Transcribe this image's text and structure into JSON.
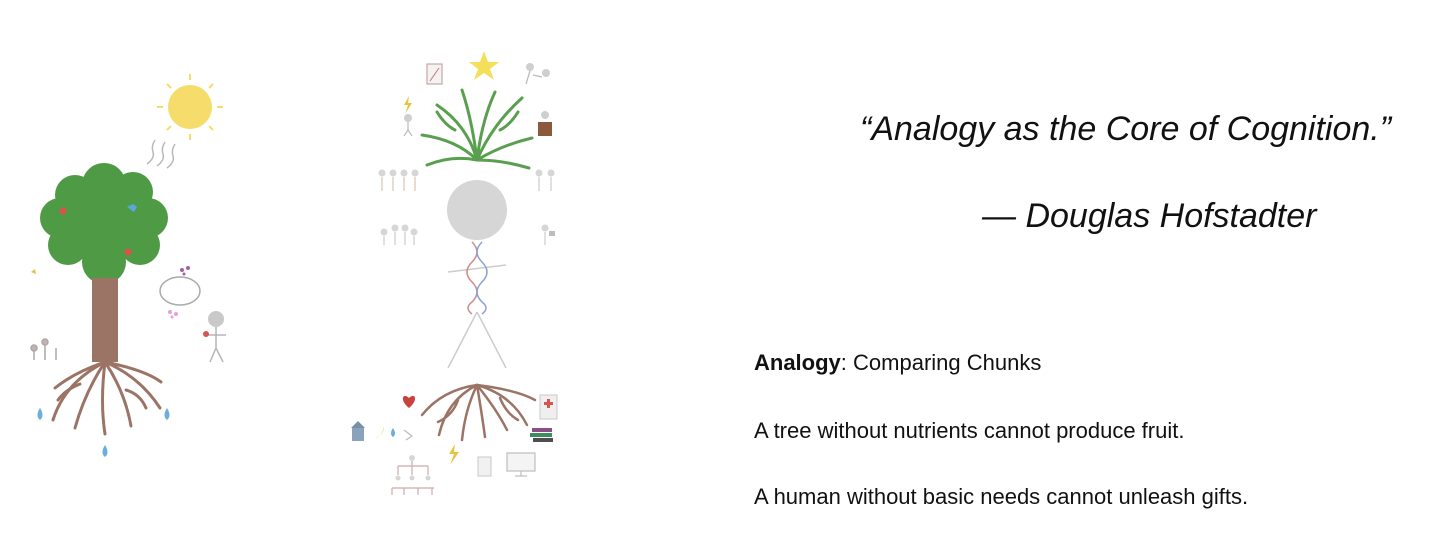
{
  "quote": {
    "text": "“Analogy as the Core of Cognition.”",
    "attribution": "— Douglas Hofstadter"
  },
  "definition": {
    "term": "Analogy",
    "rest": ": Comparing Chunks"
  },
  "statements": [
    "A tree without nutrients cannot produce fruit.",
    "A human without basic needs cannot unleash gifts."
  ],
  "illustrations": {
    "left": "tree-with-sun-rain-roots",
    "right": "human-figure-with-dna-roots-and-branches"
  },
  "colors": {
    "sun": "#f6dc6a",
    "foliage": "#4f9a45",
    "trunk": "#9b7466",
    "roots": "#9b7466",
    "branches": "#5a9e4f",
    "figure_head": "#d6d6d6",
    "water": "#6aaedb",
    "star": "#f3df5a",
    "heart": "#c8423e",
    "bolt": "#e6c441"
  }
}
